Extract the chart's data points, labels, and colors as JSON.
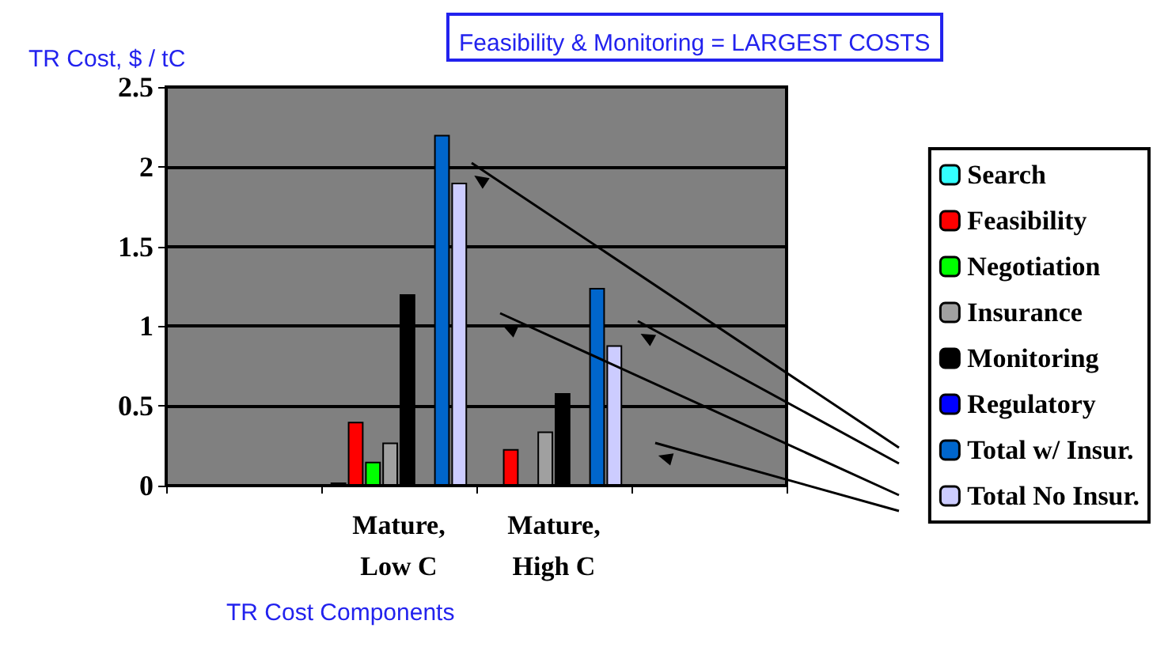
{
  "chart_data": {
    "type": "bar",
    "ylabel": "TR Cost, $ / tC",
    "xlabel": "TR Cost Components",
    "annotations": [
      "Feasibility & Monitoring = LARGEST COSTS"
    ],
    "categories": [
      null,
      "Mature,\nLow C",
      "Mature,\nHigh C",
      null
    ],
    "series": [
      {
        "name": "Search",
        "color": "#33ffff",
        "values": [
          null,
          0.02,
          null,
          null
        ]
      },
      {
        "name": "Feasibility",
        "color": "#ff0000",
        "values": [
          null,
          0.4,
          0.23,
          null
        ]
      },
      {
        "name": "Negotiation",
        "color": "#00ff00",
        "values": [
          null,
          0.15,
          0.01,
          null
        ]
      },
      {
        "name": "Insurance",
        "color": "#a0a0a0",
        "values": [
          null,
          0.27,
          0.34,
          null
        ]
      },
      {
        "name": "Monitoring",
        "color": "#000000",
        "values": [
          null,
          1.2,
          0.58,
          null
        ]
      },
      {
        "name": "Regulatory",
        "color": "#0000ff",
        "values": [
          null,
          0.01,
          0.01,
          null
        ]
      },
      {
        "name": "Total w/ Insur.",
        "color": "#0066cc",
        "values": [
          null,
          2.2,
          1.24,
          null
        ]
      },
      {
        "name": "Total No Insur.",
        "color": "#ccccff",
        "values": [
          null,
          1.9,
          0.88,
          null
        ]
      }
    ],
    "ylim": [
      0,
      2.5
    ],
    "yticks": [
      0,
      0.5,
      1,
      1.5,
      2,
      2.5
    ],
    "grid": "y",
    "legend": "right"
  }
}
